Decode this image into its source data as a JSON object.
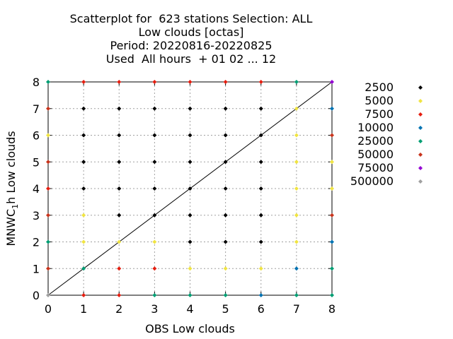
{
  "header": {
    "line1": "Scatterplot for  623 stations Selection: ALL",
    "line2": "Low clouds [octas]",
    "line3": "Period: 20220816-20220825",
    "line4": "Used  All hours  + 01 02 ... 12"
  },
  "colors": {
    "2500": "#000000",
    "5000": "#f0e442",
    "7500": "#e51e10",
    "10000": "#0072b2",
    "25000": "#009e73",
    "50000": "#c8341c",
    "75000": "#9400d3",
    "500000": "#a0a0a0",
    "grid": "#a0a0a0",
    "diagonal": "#000000"
  },
  "chart_data": {
    "type": "scatter",
    "xlabel": "OBS Low clouds",
    "ylabel_main": "MNWC",
    "ylabel_sub": "1",
    "ylabel_tail": "h Low clouds",
    "xlim": [
      0,
      8
    ],
    "ylim": [
      0,
      8
    ],
    "x_ticks": [
      "0",
      "1",
      "2",
      "3",
      "4",
      "5",
      "6",
      "7",
      "8"
    ],
    "y_ticks": [
      "0",
      "1",
      "2",
      "3",
      "4",
      "5",
      "6",
      "7",
      "8"
    ],
    "grid": true,
    "diagonal": true,
    "legend_position": "right",
    "legend": [
      {
        "label": "2500",
        "color_key": "2500"
      },
      {
        "label": "5000",
        "color_key": "5000"
      },
      {
        "label": "7500",
        "color_key": "7500"
      },
      {
        "label": "10000",
        "color_key": "10000"
      },
      {
        "label": "25000",
        "color_key": "25000"
      },
      {
        "label": "50000",
        "color_key": "50000"
      },
      {
        "label": "75000",
        "color_key": "75000"
      },
      {
        "label": "500000",
        "color_key": "500000"
      }
    ],
    "grid_points": {
      "8": [
        "25000",
        "7500",
        "7500",
        "7500",
        "7500",
        "7500",
        "7500",
        "25000",
        "75000"
      ],
      "7": [
        "50000",
        "2500",
        "2500",
        "2500",
        "2500",
        "2500",
        "2500",
        "5000",
        "10000"
      ],
      "6": [
        "5000",
        "2500",
        "2500",
        "2500",
        "2500",
        "2500",
        "2500",
        "5000",
        "50000"
      ],
      "5": [
        "50000",
        "2500",
        "2500",
        "2500",
        "2500",
        "2500",
        "2500",
        "5000",
        "5000"
      ],
      "4": [
        "7500",
        "2500",
        "2500",
        "2500",
        "2500",
        "2500",
        "2500",
        "5000",
        "5000"
      ],
      "3": [
        "50000",
        "5000",
        "2500",
        "2500",
        "2500",
        "2500",
        "2500",
        "5000",
        "50000"
      ],
      "2": [
        "25000",
        "5000",
        "5000",
        "5000",
        "2500",
        "2500",
        "2500",
        "5000",
        "10000"
      ],
      "1": [
        "50000",
        "25000",
        "7500",
        "7500",
        "5000",
        "5000",
        "5000",
        "10000",
        "25000"
      ],
      "0": [
        "500000",
        "7500",
        "7500",
        "25000",
        "25000",
        "25000",
        "10000",
        "25000",
        "25000"
      ]
    }
  }
}
